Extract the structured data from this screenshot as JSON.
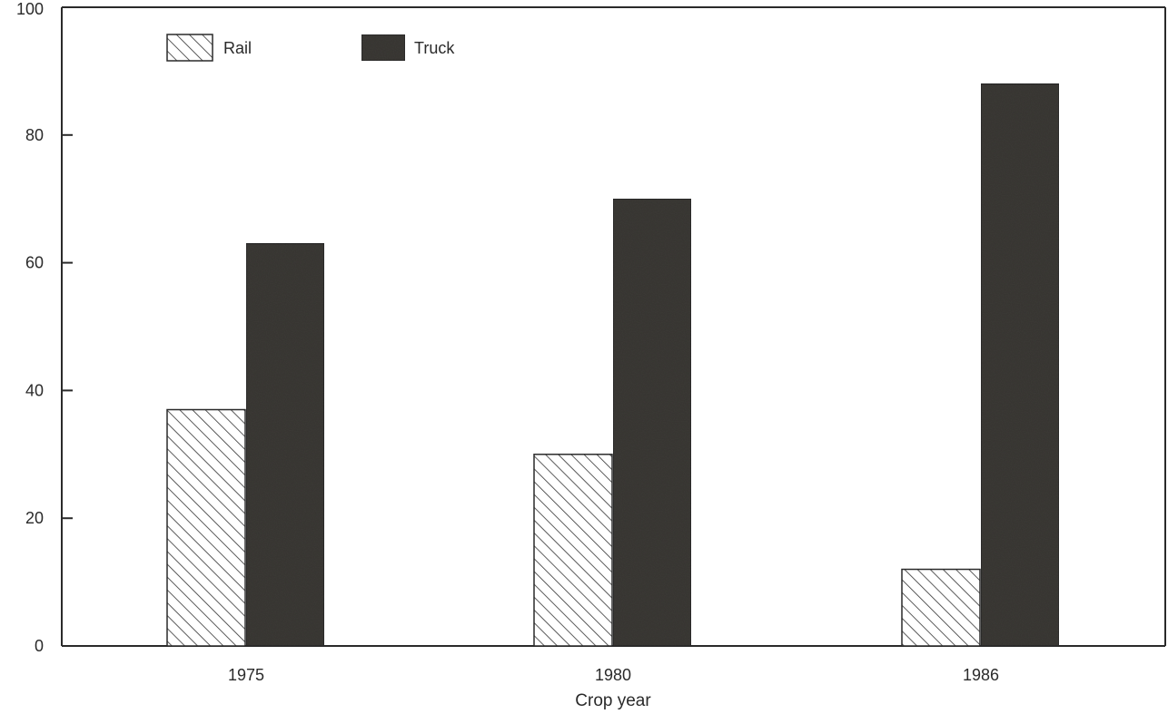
{
  "chart_data": {
    "type": "bar",
    "title": "",
    "xlabel": "Crop year",
    "ylabel": "",
    "categories": [
      "1975",
      "1980",
      "1986"
    ],
    "series": [
      {
        "name": "Rail",
        "values": [
          37,
          30,
          12
        ],
        "pattern": "diagonal-hatch",
        "color": "#ffffff"
      },
      {
        "name": "Truck",
        "values": [
          63,
          70,
          88
        ],
        "pattern": "solid",
        "color": "#3b3935"
      }
    ],
    "ylim": [
      0,
      100
    ],
    "yticks": [
      "0",
      "20",
      "40",
      "60",
      "80",
      "100"
    ],
    "legend_position": "top-left",
    "grid": false
  }
}
